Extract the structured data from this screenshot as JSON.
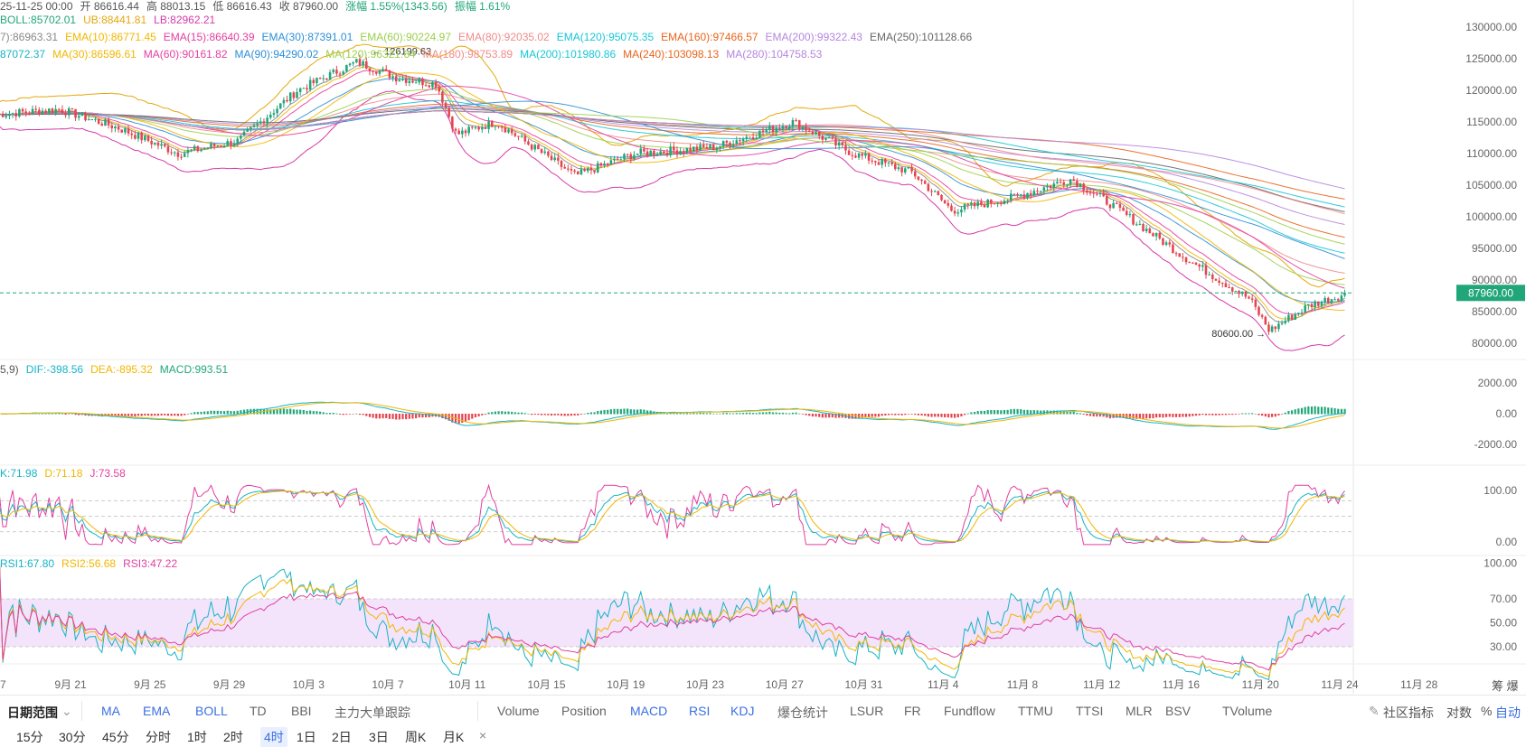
{
  "header": {
    "ohlc": [
      {
        "text": "25-11-25 00:00",
        "color": "#555555"
      },
      {
        "text": "开 86616.44",
        "color": "#555555"
      },
      {
        "text": "高 88013.15",
        "color": "#555555"
      },
      {
        "text": "低 86616.43",
        "color": "#555555"
      },
      {
        "text": "收 87960.00",
        "color": "#555555"
      },
      {
        "text": "涨幅 1.55%(1343.56)",
        "color": "#21a67a"
      },
      {
        "text": "振幅 1.61%",
        "color": "#21a67a"
      }
    ],
    "boll": [
      {
        "text": "BOLL:85702.01",
        "color": "#21a67a"
      },
      {
        "text": "UB:88441.81",
        "color": "#e5a80f"
      },
      {
        "text": "LB:82962.21",
        "color": "#d63aa8"
      }
    ],
    "ema": [
      {
        "text": "7):86963.31",
        "color": "#888888"
      },
      {
        "text": "EMA(10):86771.45",
        "color": "#f2b600"
      },
      {
        "text": "EMA(15):86640.39",
        "color": "#e23fa0"
      },
      {
        "text": "EMA(30):87391.01",
        "color": "#2c8fd6"
      },
      {
        "text": "EMA(60):90224.97",
        "color": "#9ccf4a"
      },
      {
        "text": "EMA(80):92035.02",
        "color": "#f08b8b"
      },
      {
        "text": "EMA(120):95075.35",
        "color": "#17c7d6"
      },
      {
        "text": "EMA(160):97466.57",
        "color": "#e8641b"
      },
      {
        "text": "EMA(200):99322.43",
        "color": "#b685e0"
      },
      {
        "text": "EMA(250):101128.66",
        "color": "#666666"
      }
    ],
    "ma": [
      {
        "text": "87072.37",
        "color": "#17b3c4"
      },
      {
        "text": "MA(30):86596.61",
        "color": "#f2b600"
      },
      {
        "text": "MA(60):90161.82",
        "color": "#e23fa0"
      },
      {
        "text": "MA(90):94290.02",
        "color": "#2c8fd6"
      },
      {
        "text": "MA(120):96321.64",
        "color": "#9ccf4a"
      },
      {
        "text": "MA(180):98753.89",
        "color": "#f08b8b"
      },
      {
        "text": "MA(200):101980.86",
        "color": "#17c7d6"
      },
      {
        "text": "MA(240):103098.13",
        "color": "#e8641b"
      },
      {
        "text": "MA(280):104758.53",
        "color": "#b685e0"
      }
    ],
    "macd": [
      {
        "text": "5,9)",
        "color": "#555555"
      },
      {
        "text": "DIF:-398.56",
        "color": "#17b3c4"
      },
      {
        "text": "DEA:-895.32",
        "color": "#f2b600"
      },
      {
        "text": "MACD:993.51",
        "color": "#21a67a"
      }
    ],
    "kdj": [
      {
        "text": "K:71.98",
        "color": "#17b3c4"
      },
      {
        "text": "D:71.18",
        "color": "#f2b600"
      },
      {
        "text": "J:73.58",
        "color": "#e23fa0"
      }
    ],
    "rsi": [
      {
        "text": "RSI1:67.80",
        "color": "#17b3c4"
      },
      {
        "text": "RSI2:56.68",
        "color": "#f2b600"
      },
      {
        "text": "RSI3:47.22",
        "color": "#e23fa0"
      }
    ]
  },
  "chart_data": {
    "type": "candlestick",
    "x_tick_labels": [
      "7",
      "9月 21",
      "9月 25",
      "9月 29",
      "10月 3",
      "10月 7",
      "10月 11",
      "10月 15",
      "10月 19",
      "10月 23",
      "10月 27",
      "10月 31",
      "11月 4",
      "11月 8",
      "11月 12",
      "11月 16",
      "11月 20",
      "11月 24",
      "11月 28"
    ],
    "price_axis": {
      "ticks": [
        130000,
        125000,
        120000,
        115000,
        110000,
        105000,
        100000,
        95000,
        90000,
        85000,
        80000
      ],
      "tick_labels": [
        "130000.00",
        "125000.00",
        "120000.00",
        "115000.00",
        "110000.00",
        "105000.00",
        "100000.00",
        "95000.00",
        "90000.00",
        "85000.00",
        "80000.00"
      ]
    },
    "close_profile": {
      "dates": [
        "9月 19",
        "9月 21",
        "9月 24",
        "9月 27",
        "9月 30",
        "10月 3",
        "10月 6",
        "10月 8",
        "10月 10",
        "10月 11",
        "10月 13",
        "10月 17",
        "10月 20",
        "10月 24",
        "10月 28",
        "10月 31",
        "11月 3",
        "11月 5",
        "11月 8",
        "11月 11",
        "11月 13",
        "11月 17",
        "11月 20",
        "11月 21",
        "11月 23",
        "11月 25"
      ],
      "values": [
        116000,
        117000,
        114000,
        110000,
        112000,
        120000,
        124500,
        122000,
        121000,
        113000,
        115000,
        106500,
        110000,
        111000,
        115000,
        110000,
        107000,
        101000,
        103000,
        106000,
        102000,
        93000,
        87000,
        82000,
        86000,
        87960
      ]
    },
    "last_price": 87960.0,
    "last_price_label": "87960.00",
    "high_marker": {
      "label": "126199.63",
      "value": 126199.63,
      "date": "10月 6"
    },
    "low_marker": {
      "label": "80600.00",
      "value": 80600.0,
      "date": "11月 21"
    },
    "macd_axis": {
      "ticks": [
        2000,
        0,
        -2000
      ],
      "tick_labels": [
        "2000.00",
        "0.00",
        "-2000.00"
      ]
    },
    "kdj_axis": {
      "ticks": [
        100,
        0
      ],
      "tick_labels": [
        "100.00",
        "0.00"
      ]
    },
    "rsi_axis": {
      "ticks": [
        100,
        70,
        50,
        30
      ],
      "tick_labels": [
        "100.00",
        "70.00",
        "50.00",
        "30.00"
      ]
    },
    "up_color": "#21a67a",
    "down_color": "#e5454e"
  },
  "toolbar": {
    "date_range": "日期范围",
    "indicators_main": [
      "MA",
      "EMA",
      "BOLL",
      "TD",
      "BBI",
      "主力大单跟踪"
    ],
    "indicators_sub": [
      "Volume",
      "Position",
      "MACD",
      "RSI",
      "KDJ",
      "爆仓统计",
      "LSUR",
      "FR",
      "Fundflow",
      "TTMU",
      "TTSI",
      "MLR",
      "BSV",
      "TVolume"
    ],
    "community": "社区指标",
    "log": "对数",
    "pct": "%",
    "auto": "自动"
  },
  "intervals": {
    "items": [
      "15分",
      "30分",
      "45分",
      "分时",
      "1时",
      "2时",
      "4时",
      "1日",
      "2日",
      "3日",
      "周K",
      "月K",
      "×"
    ],
    "active_index": 6
  },
  "corner": {
    "right": "筹 爆"
  },
  "colors": {
    "accent": "#3b6fe0",
    "up": "#21a67a",
    "down": "#e5454e"
  }
}
